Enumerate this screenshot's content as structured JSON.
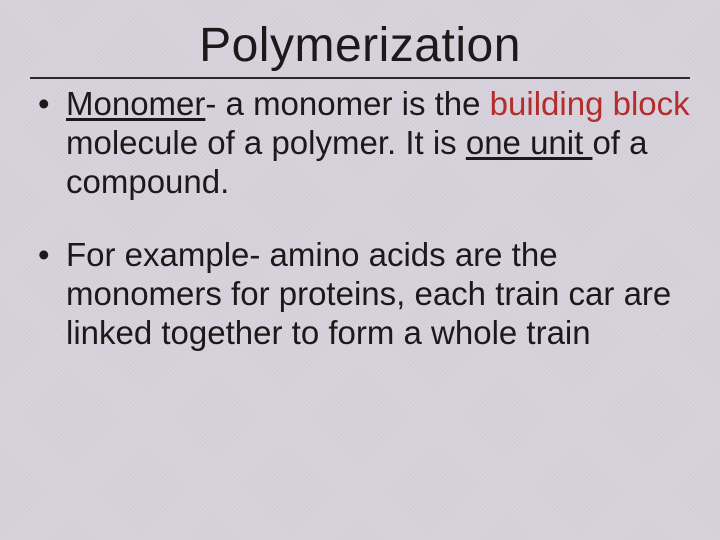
{
  "slide": {
    "title": "Polymerization",
    "title_fontsize": 48,
    "body_fontsize": 33,
    "font_family": "Comic Sans MS",
    "text_color": "#1a1a1a",
    "accent_color": "#b42c2c",
    "background_color": "#d8d3dc",
    "rule_color": "#2a2a2a",
    "bullets": [
      {
        "segments": {
          "term": "Monomer",
          "dash": "- a monomer is the ",
          "accent": "building block",
          "mid": "  molecule of a polymer. It is ",
          "underlined": "one unit ",
          "tail": "of a compound."
        }
      },
      {
        "text": "For example- amino acids are the monomers for proteins, each train car are linked together to form a whole train"
      }
    ]
  }
}
